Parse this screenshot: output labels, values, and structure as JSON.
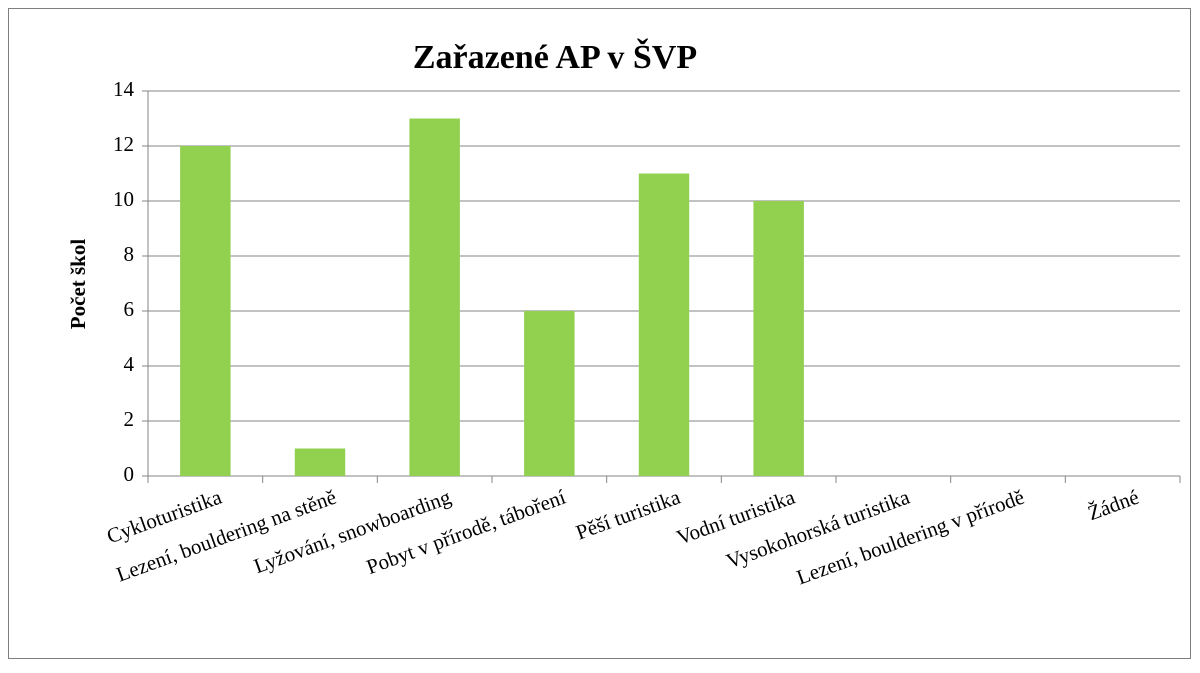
{
  "chart_data": {
    "type": "bar",
    "title": "Zařazené AP v ŠVP",
    "y_label": "Počet škol",
    "categories": [
      "Cykloturistika",
      "Lezení, bouldering na stěně",
      "Lyžování, snowboarding",
      "Pobyt v přírodě, táboření",
      "Pěší turistika",
      "Vodní turistika",
      "Vysokohorská turistika",
      "Lezení, bouldering v přírodě",
      "Žádné"
    ],
    "values": [
      12,
      1,
      13,
      6,
      11,
      10,
      0,
      0,
      0
    ],
    "color": "#92d050",
    "ylim": [
      0,
      14
    ],
    "yticks": [
      0,
      2,
      4,
      6,
      8,
      10,
      12,
      14
    ],
    "grid": true
  }
}
